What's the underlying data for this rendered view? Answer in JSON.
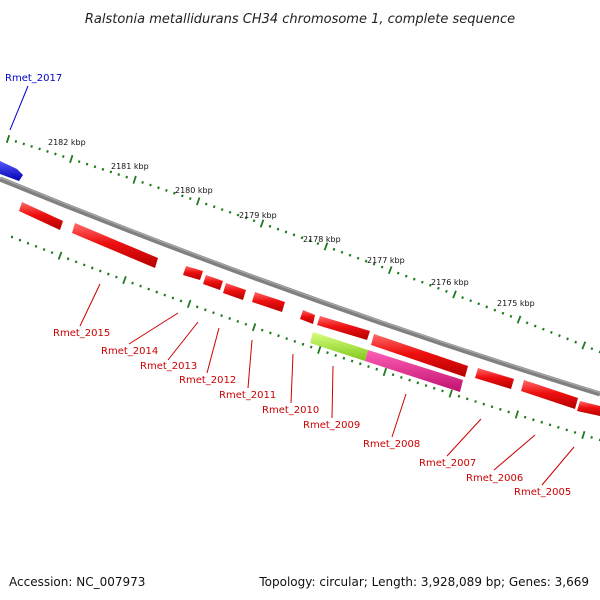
{
  "title": "Ralstonia metallidurans CH34 chromosome 1, complete sequence",
  "footer": {
    "accession": "Accession: NC_007973",
    "summary": "Topology: circular; Length: 3,928,089 bp; Genes: 3,669"
  },
  "colors": {
    "backbone": "#808080",
    "tick": "#1e7a1e",
    "gene_forward_highlight": "#1010e0",
    "gene_reverse": "#ee1010",
    "gene_special_1": "#a8f03a",
    "gene_special_2": "#e0208a",
    "label_reverse": "#cc0000",
    "label_forward": "#0000cc"
  },
  "scale_labels": [
    "2182 kbp",
    "2181 kbp",
    "2180 kbp",
    "2179 kbp",
    "2178 kbp",
    "2177 kbp",
    "2176 kbp",
    "2175 kbp"
  ],
  "gene_labels": [
    {
      "id": "rmet_2017",
      "text": "Rmet_2017",
      "strand": "forward"
    },
    {
      "id": "rmet_2015",
      "text": "Rmet_2015",
      "strand": "reverse"
    },
    {
      "id": "rmet_2014",
      "text": "Rmet_2014",
      "strand": "reverse"
    },
    {
      "id": "rmet_2013",
      "text": "Rmet_2013",
      "strand": "reverse"
    },
    {
      "id": "rmet_2012",
      "text": "Rmet_2012",
      "strand": "reverse"
    },
    {
      "id": "rmet_2011",
      "text": "Rmet_2011",
      "strand": "reverse"
    },
    {
      "id": "rmet_2010",
      "text": "Rmet_2010",
      "strand": "reverse"
    },
    {
      "id": "rmet_2009",
      "text": "Rmet_2009",
      "strand": "reverse"
    },
    {
      "id": "rmet_2008",
      "text": "Rmet_2008",
      "strand": "reverse"
    },
    {
      "id": "rmet_2007",
      "text": "Rmet_2007",
      "strand": "reverse"
    },
    {
      "id": "rmet_2006",
      "text": "Rmet_2006",
      "strand": "reverse"
    },
    {
      "id": "rmet_2005",
      "text": "Rmet_2005",
      "strand": "reverse"
    }
  ]
}
